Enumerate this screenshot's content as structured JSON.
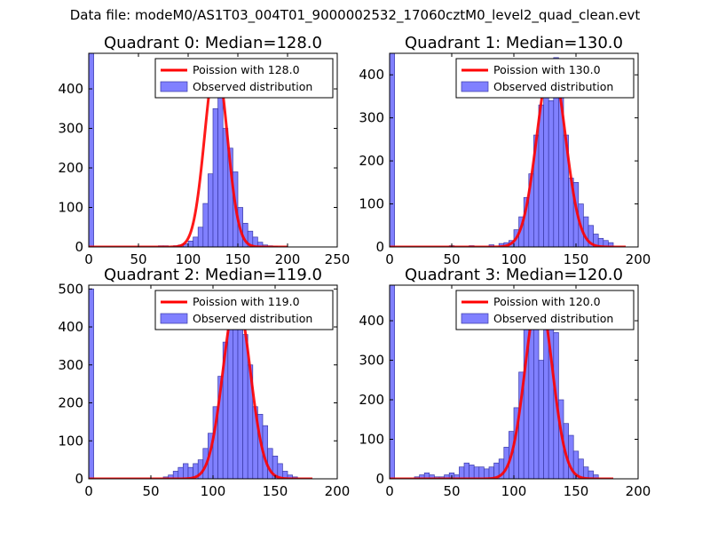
{
  "figure": {
    "suptitle": "Data file: modeM0/AS1T03_004T01_9000002532_17060cztM0_level2_quad_clean.evt"
  },
  "colors": {
    "hist_fill": "#8080ff",
    "hist_edge": "#3a3aa8",
    "poisson_line": "#ff0000"
  },
  "chart_data": [
    {
      "type": "bar",
      "title": "Quadrant 0: Median=128.0",
      "xlim": [
        0,
        250
      ],
      "ylim": [
        0,
        490
      ],
      "xticks": [
        0,
        50,
        100,
        150,
        200,
        250
      ],
      "yticks": [
        0,
        100,
        200,
        300,
        400
      ],
      "legend_position": "top-right",
      "legend": [
        "Poission with 128.0",
        "Observed distribution"
      ],
      "bin_width": 5,
      "bins": [
        {
          "x": 0,
          "y": 490
        },
        {
          "x": 70,
          "y": 3
        },
        {
          "x": 75,
          "y": 3
        },
        {
          "x": 80,
          "y": 0
        },
        {
          "x": 85,
          "y": 3
        },
        {
          "x": 90,
          "y": 5
        },
        {
          "x": 95,
          "y": 8
        },
        {
          "x": 100,
          "y": 15
        },
        {
          "x": 105,
          "y": 25
        },
        {
          "x": 110,
          "y": 50
        },
        {
          "x": 115,
          "y": 110
        },
        {
          "x": 120,
          "y": 185
        },
        {
          "x": 125,
          "y": 350
        },
        {
          "x": 130,
          "y": 440
        },
        {
          "x": 135,
          "y": 300
        },
        {
          "x": 140,
          "y": 250
        },
        {
          "x": 145,
          "y": 190
        },
        {
          "x": 150,
          "y": 100
        },
        {
          "x": 155,
          "y": 60
        },
        {
          "x": 160,
          "y": 40
        },
        {
          "x": 165,
          "y": 25
        },
        {
          "x": 170,
          "y": 12
        },
        {
          "x": 175,
          "y": 5
        },
        {
          "x": 180,
          "y": 3
        },
        {
          "x": 185,
          "y": 2
        }
      ],
      "poisson": {
        "mean": 128.0,
        "amplitude": 470,
        "sigma": 11.3,
        "x_range": [
          0,
          200
        ]
      }
    },
    {
      "type": "bar",
      "title": "Quadrant 1: Median=130.0",
      "xlim": [
        0,
        200
      ],
      "ylim": [
        0,
        450
      ],
      "xticks": [
        0,
        50,
        100,
        150,
        200
      ],
      "yticks": [
        0,
        100,
        200,
        300,
        400
      ],
      "legend_position": "top-right",
      "legend": [
        "Poission with 130.0",
        "Observed distribution"
      ],
      "bin_width": 4,
      "bins": [
        {
          "x": 0,
          "y": 450
        },
        {
          "x": 48,
          "y": 3
        },
        {
          "x": 64,
          "y": 3
        },
        {
          "x": 80,
          "y": 5
        },
        {
          "x": 88,
          "y": 8
        },
        {
          "x": 92,
          "y": 10
        },
        {
          "x": 96,
          "y": 15
        },
        {
          "x": 100,
          "y": 40
        },
        {
          "x": 104,
          "y": 70
        },
        {
          "x": 108,
          "y": 115
        },
        {
          "x": 112,
          "y": 170
        },
        {
          "x": 116,
          "y": 260
        },
        {
          "x": 120,
          "y": 330
        },
        {
          "x": 124,
          "y": 410
        },
        {
          "x": 128,
          "y": 340
        },
        {
          "x": 132,
          "y": 440
        },
        {
          "x": 136,
          "y": 400
        },
        {
          "x": 140,
          "y": 260
        },
        {
          "x": 144,
          "y": 160
        },
        {
          "x": 148,
          "y": 150
        },
        {
          "x": 152,
          "y": 100
        },
        {
          "x": 156,
          "y": 70
        },
        {
          "x": 160,
          "y": 50
        },
        {
          "x": 164,
          "y": 30
        },
        {
          "x": 168,
          "y": 20
        },
        {
          "x": 172,
          "y": 15
        },
        {
          "x": 176,
          "y": 10
        }
      ],
      "poisson": {
        "mean": 130.0,
        "amplitude": 430,
        "sigma": 11.4,
        "x_range": [
          0,
          190
        ]
      }
    },
    {
      "type": "bar",
      "title": "Quadrant 2: Median=119.0",
      "xlim": [
        0,
        200
      ],
      "ylim": [
        0,
        510
      ],
      "xticks": [
        0,
        50,
        100,
        150,
        200
      ],
      "yticks": [
        0,
        100,
        200,
        300,
        400,
        500
      ],
      "legend_position": "top-right",
      "legend": [
        "Poission with 119.0",
        "Observed distribution"
      ],
      "bin_width": 4,
      "bins": [
        {
          "x": 0,
          "y": 500
        },
        {
          "x": 60,
          "y": 5
        },
        {
          "x": 64,
          "y": 10
        },
        {
          "x": 68,
          "y": 20
        },
        {
          "x": 72,
          "y": 30
        },
        {
          "x": 76,
          "y": 40
        },
        {
          "x": 80,
          "y": 30
        },
        {
          "x": 84,
          "y": 40
        },
        {
          "x": 88,
          "y": 50
        },
        {
          "x": 92,
          "y": 80
        },
        {
          "x": 96,
          "y": 120
        },
        {
          "x": 100,
          "y": 190
        },
        {
          "x": 104,
          "y": 270
        },
        {
          "x": 108,
          "y": 360
        },
        {
          "x": 112,
          "y": 420
        },
        {
          "x": 116,
          "y": 480
        },
        {
          "x": 120,
          "y": 460
        },
        {
          "x": 124,
          "y": 380
        },
        {
          "x": 128,
          "y": 300
        },
        {
          "x": 132,
          "y": 190
        },
        {
          "x": 136,
          "y": 170
        },
        {
          "x": 140,
          "y": 140
        },
        {
          "x": 144,
          "y": 80
        },
        {
          "x": 148,
          "y": 60
        },
        {
          "x": 152,
          "y": 40
        },
        {
          "x": 156,
          "y": 20
        },
        {
          "x": 160,
          "y": 10
        },
        {
          "x": 164,
          "y": 5
        }
      ],
      "poisson": {
        "mean": 119.0,
        "amplitude": 475,
        "sigma": 10.9,
        "x_range": [
          0,
          180
        ]
      }
    },
    {
      "type": "bar",
      "title": "Quadrant 3: Median=120.0",
      "xlim": [
        0,
        200
      ],
      "ylim": [
        0,
        490
      ],
      "xticks": [
        0,
        50,
        100,
        150,
        200
      ],
      "yticks": [
        0,
        100,
        200,
        300,
        400
      ],
      "legend_position": "top-right",
      "legend": [
        "Poission with 120.0",
        "Observed distribution"
      ],
      "bin_width": 4,
      "bins": [
        {
          "x": 0,
          "y": 490
        },
        {
          "x": 20,
          "y": 5
        },
        {
          "x": 24,
          "y": 10
        },
        {
          "x": 28,
          "y": 15
        },
        {
          "x": 32,
          "y": 10
        },
        {
          "x": 36,
          "y": 5
        },
        {
          "x": 40,
          "y": 5
        },
        {
          "x": 44,
          "y": 10
        },
        {
          "x": 48,
          "y": 15
        },
        {
          "x": 52,
          "y": 10
        },
        {
          "x": 56,
          "y": 30
        },
        {
          "x": 60,
          "y": 40
        },
        {
          "x": 64,
          "y": 35
        },
        {
          "x": 68,
          "y": 30
        },
        {
          "x": 72,
          "y": 30
        },
        {
          "x": 76,
          "y": 25
        },
        {
          "x": 80,
          "y": 30
        },
        {
          "x": 84,
          "y": 40
        },
        {
          "x": 88,
          "y": 50
        },
        {
          "x": 92,
          "y": 80
        },
        {
          "x": 96,
          "y": 120
        },
        {
          "x": 100,
          "y": 180
        },
        {
          "x": 104,
          "y": 270
        },
        {
          "x": 108,
          "y": 390
        },
        {
          "x": 112,
          "y": 440
        },
        {
          "x": 116,
          "y": 470
        },
        {
          "x": 120,
          "y": 300
        },
        {
          "x": 124,
          "y": 400
        },
        {
          "x": 128,
          "y": 440
        },
        {
          "x": 132,
          "y": 370
        },
        {
          "x": 136,
          "y": 200
        },
        {
          "x": 140,
          "y": 140
        },
        {
          "x": 144,
          "y": 110
        },
        {
          "x": 148,
          "y": 70
        },
        {
          "x": 152,
          "y": 50
        },
        {
          "x": 156,
          "y": 30
        },
        {
          "x": 160,
          "y": 20
        },
        {
          "x": 164,
          "y": 10
        }
      ],
      "poisson": {
        "mean": 120.0,
        "amplitude": 465,
        "sigma": 10.9,
        "x_range": [
          0,
          180
        ]
      }
    }
  ]
}
